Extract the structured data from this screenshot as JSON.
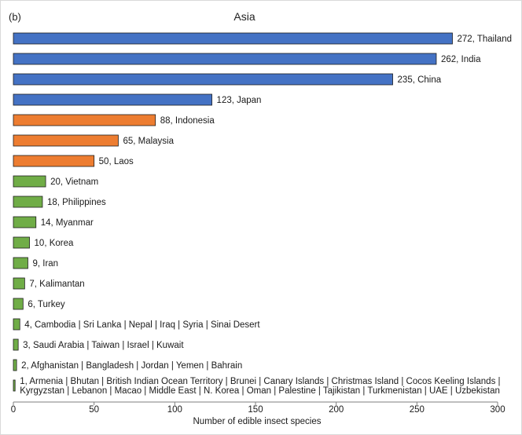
{
  "chart_data": {
    "type": "bar",
    "orientation": "horizontal",
    "panel_label": "(b)",
    "title": "Asia",
    "xlabel": "Number of edible insect species",
    "ylabel": "",
    "xlim": [
      0,
      300
    ],
    "x_ticks": [
      0,
      50,
      100,
      150,
      200,
      250,
      300
    ],
    "grid": false,
    "legend": "none",
    "colors": {
      "blue": "#4472c4",
      "orange": "#ed7d31",
      "green": "#70ad47",
      "axis": "#7f7f7f"
    },
    "bars": [
      {
        "value": 272,
        "group": "blue",
        "label_lines": [
          "272, Thailand"
        ]
      },
      {
        "value": 262,
        "group": "blue",
        "label_lines": [
          "262, India"
        ]
      },
      {
        "value": 235,
        "group": "blue",
        "label_lines": [
          "235, China"
        ]
      },
      {
        "value": 123,
        "group": "blue",
        "label_lines": [
          "123, Japan"
        ]
      },
      {
        "value": 88,
        "group": "orange",
        "label_lines": [
          "88, Indonesia"
        ]
      },
      {
        "value": 65,
        "group": "orange",
        "label_lines": [
          "65, Malaysia"
        ]
      },
      {
        "value": 50,
        "group": "orange",
        "label_lines": [
          "50, Laos"
        ]
      },
      {
        "value": 20,
        "group": "green",
        "label_lines": [
          "20, Vietnam"
        ]
      },
      {
        "value": 18,
        "group": "green",
        "label_lines": [
          "18, Philippines"
        ]
      },
      {
        "value": 14,
        "group": "green",
        "label_lines": [
          "14, Myanmar"
        ]
      },
      {
        "value": 10,
        "group": "green",
        "label_lines": [
          "10, Korea"
        ]
      },
      {
        "value": 9,
        "group": "green",
        "label_lines": [
          "9, Iran"
        ]
      },
      {
        "value": 7,
        "group": "green",
        "label_lines": [
          "7, Kalimantan"
        ]
      },
      {
        "value": 6,
        "group": "green",
        "label_lines": [
          "6, Turkey"
        ]
      },
      {
        "value": 4,
        "group": "green",
        "label_lines": [
          "4, Cambodia | Sri Lanka | Nepal | Iraq | Syria | Sinai Desert"
        ]
      },
      {
        "value": 3,
        "group": "green",
        "label_lines": [
          "3, Saudi Arabia | Taiwan | Israel | Kuwait"
        ]
      },
      {
        "value": 2,
        "group": "green",
        "label_lines": [
          "2, Afghanistan | Bangladesh | Jordan | Yemen | Bahrain"
        ]
      },
      {
        "value": 1,
        "group": "green",
        "label_lines": [
          "1, Armenia | Bhutan | British Indian Ocean Territory | Brunei | Canary Islands | Christmas Island | Cocos Keeling Islands |",
          "Kyrgyzstan | Lebanon | Macao | Middle East | N. Korea | Oman | Palestine | Tajikistan | Turkmenistan  | UAE | Uzbekistan"
        ]
      }
    ]
  }
}
